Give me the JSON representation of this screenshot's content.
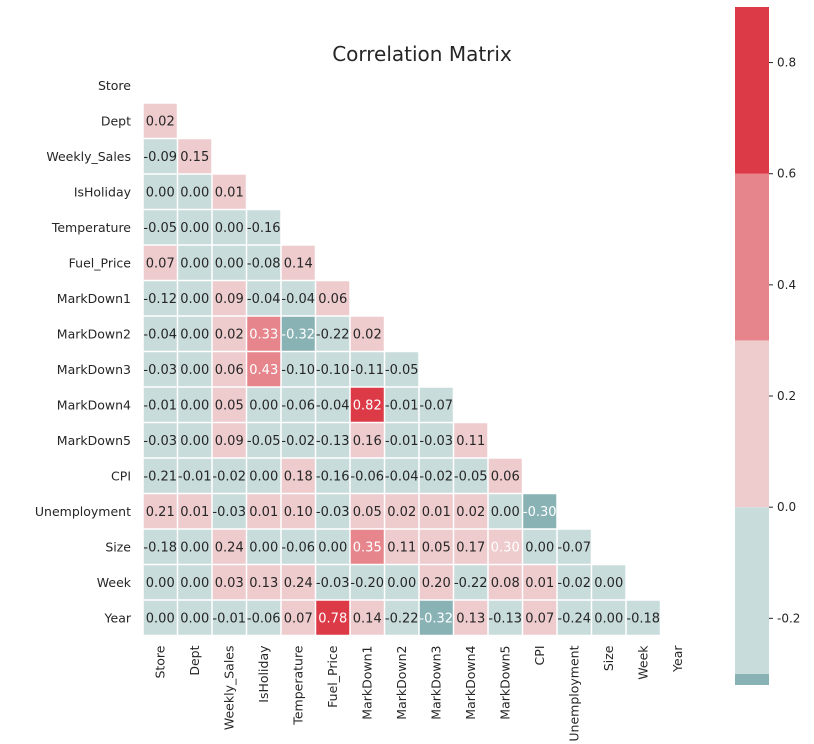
{
  "chart_data": {
    "type": "heatmap",
    "title": "Correlation Matrix",
    "variables": [
      "Store",
      "Dept",
      "Weekly_Sales",
      "IsHoliday",
      "Temperature",
      "Fuel_Price",
      "MarkDown1",
      "MarkDown2",
      "MarkDown3",
      "MarkDown4",
      "MarkDown5",
      "CPI",
      "Unemployment",
      "Size",
      "Week",
      "Year"
    ],
    "mask": "upper-triangle",
    "values": [
      [],
      [
        0.02
      ],
      [
        -0.09,
        0.15
      ],
      [
        -0.0,
        0.0,
        0.01
      ],
      [
        -0.05,
        0.0,
        -0.0,
        -0.16
      ],
      [
        0.07,
        0.0,
        -0.0,
        -0.08,
        0.14
      ],
      [
        -0.12,
        -0.0,
        0.09,
        -0.04,
        -0.04,
        0.06
      ],
      [
        -0.04,
        0.0,
        0.02,
        0.33,
        -0.32,
        -0.22,
        0.02
      ],
      [
        -0.03,
        0.0,
        0.06,
        0.43,
        -0.1,
        -0.1,
        -0.11,
        -0.05
      ],
      [
        -0.01,
        0.0,
        0.05,
        -0.0,
        -0.06,
        -0.04,
        0.82,
        -0.01,
        -0.07
      ],
      [
        -0.03,
        0.0,
        0.09,
        -0.05,
        -0.02,
        -0.13,
        0.16,
        -0.01,
        -0.03,
        0.11
      ],
      [
        -0.21,
        -0.01,
        -0.02,
        -0.0,
        0.18,
        -0.16,
        -0.06,
        -0.04,
        -0.02,
        -0.05,
        0.06
      ],
      [
        0.21,
        0.01,
        -0.03,
        0.01,
        0.1,
        -0.03,
        0.05,
        0.02,
        0.01,
        0.02,
        -0.0,
        -0.3
      ],
      [
        -0.18,
        -0.0,
        0.24,
        0.0,
        -0.06,
        0.0,
        0.35,
        0.11,
        0.05,
        0.17,
        0.3,
        -0.0,
        -0.07
      ],
      [
        0.0,
        0.0,
        0.03,
        0.13,
        0.24,
        -0.03,
        -0.2,
        -0.0,
        0.2,
        -0.22,
        0.08,
        0.01,
        -0.02,
        -0.0
      ],
      [
        0.0,
        0.0,
        -0.01,
        -0.06,
        0.07,
        0.78,
        0.14,
        -0.22,
        -0.32,
        0.13,
        -0.13,
        0.07,
        -0.24,
        -0.0,
        -0.18
      ]
    ],
    "colorbar": {
      "range": [
        -0.32,
        0.9
      ],
      "ticks": [
        "0.8",
        "0.6",
        "0.4",
        "0.2",
        "0.0",
        "-0.2"
      ],
      "tick_values": [
        0.8,
        0.6,
        0.4,
        0.2,
        0.0,
        -0.2
      ],
      "bins": [
        {
          "from": -0.32,
          "to": -0.3,
          "color": "#89b2b4"
        },
        {
          "from": -0.3,
          "to": 0.0,
          "color": "#c9dcdc"
        },
        {
          "from": 0.0,
          "to": 0.3,
          "color": "#eecbcd"
        },
        {
          "from": 0.3,
          "to": 0.6,
          "color": "#e6858c"
        },
        {
          "from": 0.6,
          "to": 0.9,
          "color": "#dc3a47"
        }
      ]
    },
    "text_color_dark": "#262626",
    "text_color_light": "#ffffff",
    "grid": false,
    "legend": "colorbar-right"
  }
}
